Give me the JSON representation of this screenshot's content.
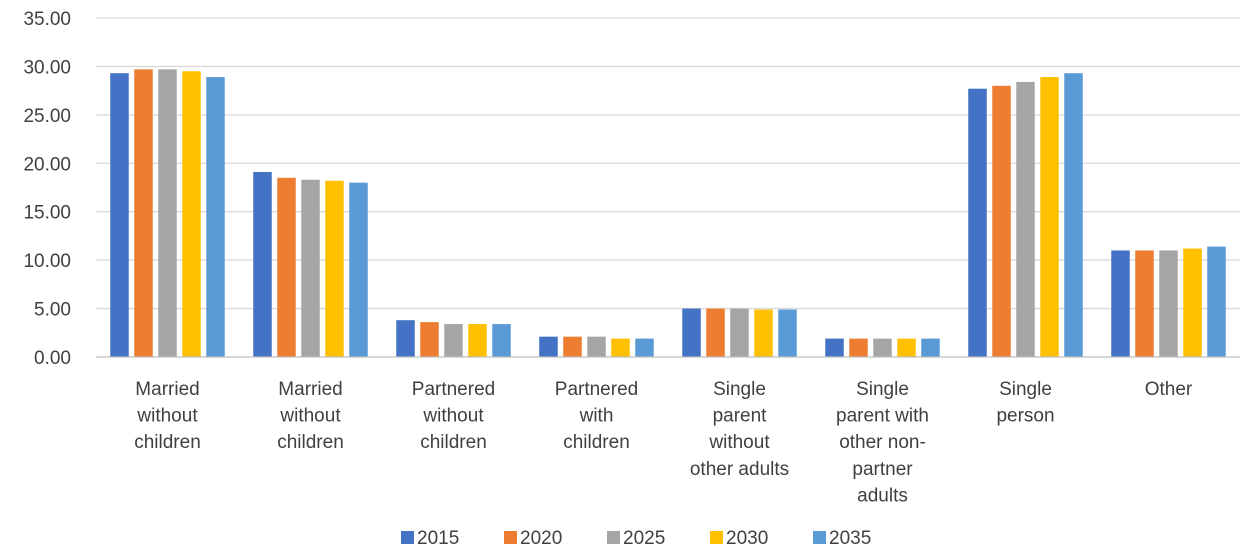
{
  "chart_data": {
    "type": "bar",
    "categories": [
      [
        "Married",
        "without",
        "children"
      ],
      [
        "Married",
        "without",
        "children"
      ],
      [
        "Partnered",
        "without",
        "children"
      ],
      [
        "Partnered",
        "with",
        "children"
      ],
      [
        "Single",
        "parent",
        "without",
        "other adults"
      ],
      [
        "Single",
        "parent with",
        "other non-",
        "partner",
        "adults"
      ],
      [
        "Single",
        "person"
      ],
      [
        "Other"
      ]
    ],
    "series": [
      {
        "name": "2015",
        "color": "#4472c4",
        "values": [
          29.3,
          19.1,
          3.8,
          2.1,
          5.0,
          1.9,
          27.7,
          11.0
        ]
      },
      {
        "name": "2020",
        "color": "#ed7d31",
        "values": [
          29.7,
          18.5,
          3.6,
          2.1,
          5.0,
          1.9,
          28.0,
          11.0
        ]
      },
      {
        "name": "2025",
        "color": "#a5a5a5",
        "values": [
          29.7,
          18.3,
          3.4,
          2.1,
          5.0,
          1.9,
          28.4,
          11.0
        ]
      },
      {
        "name": "2030",
        "color": "#ffc000",
        "values": [
          29.5,
          18.2,
          3.4,
          1.9,
          4.9,
          1.9,
          28.9,
          11.2
        ]
      },
      {
        "name": "2035",
        "color": "#5b9bd5",
        "values": [
          28.9,
          18.0,
          3.4,
          1.9,
          4.9,
          1.9,
          29.3,
          11.4
        ]
      }
    ],
    "yticks": [
      "0.00",
      "5.00",
      "10.00",
      "15.00",
      "20.00",
      "25.00",
      "30.00",
      "35.00"
    ],
    "ylim": [
      0,
      35
    ],
    "grid": true,
    "legend": "bottom",
    "title": "",
    "xlabel": "",
    "ylabel": ""
  }
}
